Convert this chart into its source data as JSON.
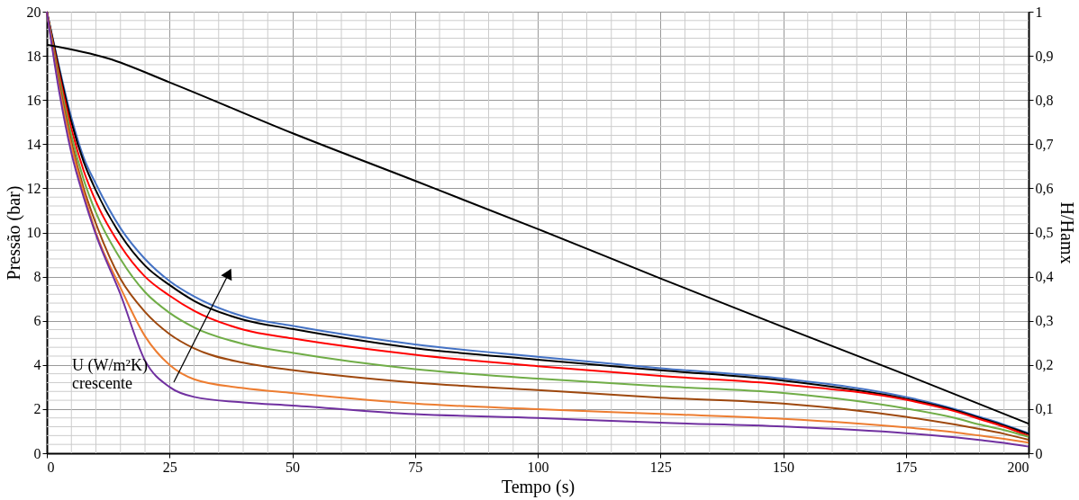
{
  "chart_data": {
    "type": "line",
    "xlabel": "Tempo (s)",
    "ylabel": "Pressão (bar)",
    "y2label": "H/Hamx",
    "xlim": [
      0,
      200
    ],
    "xticks": [
      0,
      25,
      50,
      75,
      100,
      125,
      150,
      175,
      200
    ],
    "ylim": [
      0,
      20
    ],
    "yticks": [
      0,
      2,
      4,
      6,
      8,
      10,
      12,
      14,
      16,
      18,
      20
    ],
    "y2lim": [
      0,
      1
    ],
    "y2ticks": [
      0,
      {
        "value": 0.1,
        "label": "0,1"
      },
      {
        "value": 0.2,
        "label": "0,2"
      },
      {
        "value": 0.3,
        "label": "0,3"
      },
      {
        "value": 0.4,
        "label": "0,4"
      },
      {
        "value": 0.5,
        "label": "0,5"
      },
      {
        "value": 0.6,
        "label": "0,6"
      },
      {
        "value": 0.7,
        "label": "0,7"
      },
      {
        "value": 0.8,
        "label": "0,8"
      },
      {
        "value": 0.9,
        "label": "0,9"
      },
      1
    ],
    "grid": true,
    "legend": false,
    "x": [
      0,
      2.5,
      5,
      7.5,
      10,
      15,
      20,
      25,
      30,
      40,
      50,
      75,
      100,
      125,
      150,
      175,
      185,
      190,
      195,
      200
    ],
    "series": [
      {
        "color": "#4472c4",
        "values": [
          20,
          17.5,
          15.2,
          13.4,
          12.2,
          10.2,
          8.8,
          7.8,
          7.1,
          6.2,
          5.77,
          4.93,
          4.37,
          3.85,
          3.38,
          2.55,
          2.0,
          1.65,
          1.3,
          0.91
        ]
      },
      {
        "color": "#000000",
        "values": [
          20,
          17.4,
          15.0,
          13.2,
          11.9,
          9.9,
          8.5,
          7.62,
          6.9,
          6.05,
          5.63,
          4.76,
          4.24,
          3.76,
          3.29,
          2.47,
          1.95,
          1.6,
          1.25,
          0.87
        ]
      },
      {
        "color": "#ff0000",
        "values": [
          20,
          17.2,
          14.7,
          12.8,
          11.4,
          9.4,
          8.0,
          7.14,
          6.45,
          5.6,
          5.2,
          4.46,
          3.94,
          3.5,
          3.12,
          2.42,
          1.9,
          1.55,
          1.2,
          0.78
        ]
      },
      {
        "color": "#70ad47",
        "values": [
          20,
          17.0,
          14.4,
          12.4,
          10.9,
          8.8,
          7.3,
          6.36,
          5.7,
          4.95,
          4.55,
          3.81,
          3.38,
          3.03,
          2.73,
          2.03,
          1.6,
          1.3,
          1.05,
          0.74
        ]
      },
      {
        "color": "#9e480e",
        "values": [
          20,
          16.8,
          14.1,
          12.0,
          10.4,
          7.9,
          6.4,
          5.4,
          4.75,
          4.1,
          3.77,
          3.2,
          2.86,
          2.52,
          2.25,
          1.65,
          1.3,
          1.1,
          0.88,
          0.61
        ]
      },
      {
        "color": "#ed7d31",
        "values": [
          20,
          16.6,
          13.9,
          11.8,
          10.0,
          7.5,
          5.3,
          4.0,
          3.35,
          2.95,
          2.73,
          2.25,
          2.0,
          1.78,
          1.56,
          1.17,
          0.95,
          0.8,
          0.65,
          0.48
        ]
      },
      {
        "color": "#7030a0",
        "values": [
          20,
          16.4,
          13.6,
          11.6,
          9.9,
          7.2,
          4.2,
          3.0,
          2.55,
          2.3,
          2.16,
          1.77,
          1.6,
          1.38,
          1.21,
          0.91,
          0.72,
          0.6,
          0.47,
          0.3
        ]
      },
      {
        "color": "#000000",
        "axis": "y2",
        "x": [
          0,
          12.5,
          25,
          50,
          75,
          100,
          125,
          150,
          175,
          200
        ],
        "values": [
          0.925,
          0.894,
          0.84,
          0.725,
          0.617,
          0.508,
          0.396,
          0.286,
          0.178,
          0.067
        ]
      }
    ],
    "annotations": [
      "U (W/m²K)\ncrescente"
    ]
  }
}
